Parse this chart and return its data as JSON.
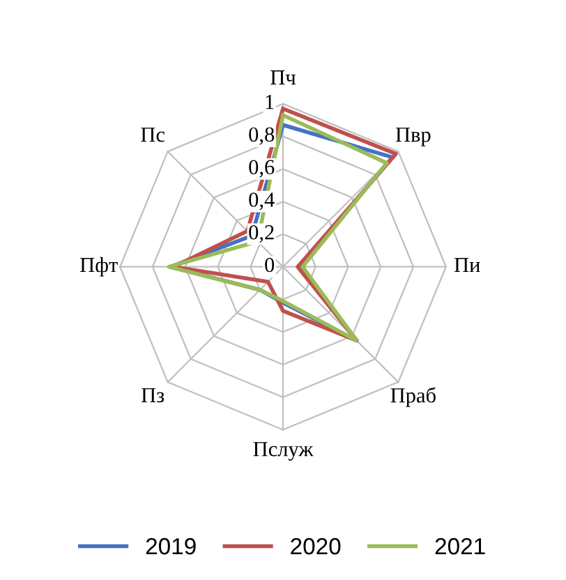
{
  "chart_data": {
    "type": "radar",
    "categories": [
      "Пч",
      "Пвр",
      "Пи",
      "Праб",
      "Пслуж",
      "Пз",
      "Пфт",
      "Пс"
    ],
    "series": [
      {
        "name": "2019",
        "color": "#4472c4",
        "values": [
          0.87,
          0.95,
          0.1,
          0.64,
          0.22,
          0.2,
          0.69,
          0.27
        ]
      },
      {
        "name": "2020",
        "color": "#c0504d",
        "values": [
          0.97,
          0.98,
          0.09,
          0.64,
          0.27,
          0.13,
          0.67,
          0.31
        ]
      },
      {
        "name": "2021",
        "color": "#9bbb59",
        "values": [
          0.93,
          0.9,
          0.12,
          0.64,
          0.21,
          0.2,
          0.7,
          0.22
        ]
      }
    ],
    "ylim": [
      0,
      1
    ],
    "yticks": [
      {
        "value": 0,
        "label": "0"
      },
      {
        "value": 0.2,
        "label": "0,2"
      },
      {
        "value": 0.4,
        "label": "0,4"
      },
      {
        "value": 0.6,
        "label": "0,6"
      },
      {
        "value": 0.8,
        "label": "0,8"
      },
      {
        "value": 1,
        "label": "1"
      }
    ],
    "grid": true,
    "legend": "bottom",
    "line_style": "solid",
    "marker": "none"
  }
}
